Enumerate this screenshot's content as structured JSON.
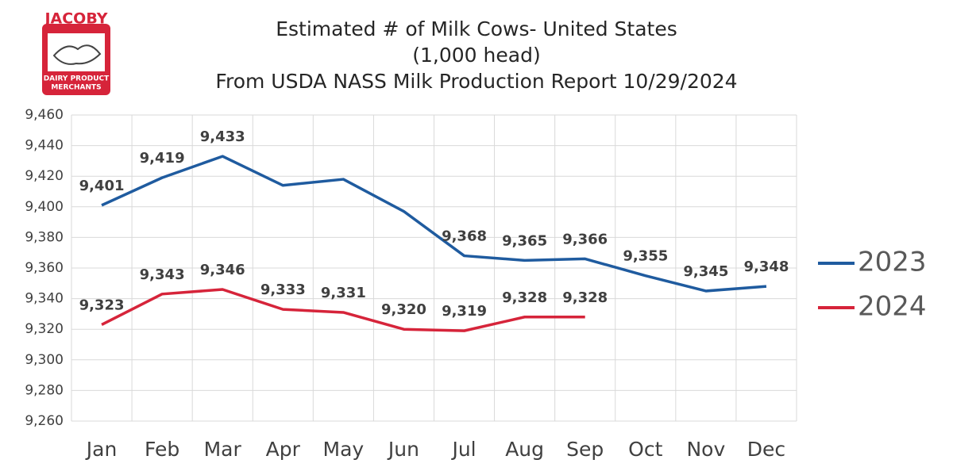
{
  "logo": {
    "name": "JACOBY",
    "line1": "DAIRY PRODUCT",
    "line2": "MERCHANTS"
  },
  "chart_data": {
    "type": "line",
    "title": "Estimated # of Milk Cows- United States",
    "subtitle": [
      "(1,000 head)",
      "From USDA NASS Milk Production Report 10/29/2024"
    ],
    "categories": [
      "Jan",
      "Feb",
      "Mar",
      "Apr",
      "May",
      "Jun",
      "Jul",
      "Aug",
      "Sep",
      "Oct",
      "Nov",
      "Dec"
    ],
    "series": [
      {
        "name": "2023",
        "color": "#1f5b9f",
        "values": [
          9401,
          9419,
          9433,
          9414,
          9418,
          9397,
          9368,
          9365,
          9366,
          9355,
          9345,
          9348
        ],
        "value_labels": [
          "9,401",
          "9,419",
          "9,433",
          null,
          null,
          null,
          "9,368",
          "9,365",
          "9,366",
          "9,355",
          "9,345",
          "9,348"
        ]
      },
      {
        "name": "2024",
        "color": "#d6243a",
        "values": [
          9323,
          9343,
          9346,
          9333,
          9331,
          9320,
          9319,
          9328,
          9328,
          null,
          null,
          null
        ],
        "value_labels": [
          "9,323",
          "9,343",
          "9,346",
          "9,333",
          "9,331",
          "9,320",
          "9,319",
          "9,328",
          "9,328",
          null,
          null,
          null
        ]
      }
    ],
    "ylim": [
      9260,
      9460
    ],
    "yticks": [
      {
        "value": 9260,
        "label": "9,260"
      },
      {
        "value": 9280,
        "label": "9,280"
      },
      {
        "value": 9300,
        "label": "9,300"
      },
      {
        "value": 9320,
        "label": "9,320"
      },
      {
        "value": 9340,
        "label": "9,340"
      },
      {
        "value": 9360,
        "label": "9,360"
      },
      {
        "value": 9380,
        "label": "9,380"
      },
      {
        "value": 9400,
        "label": "9,400"
      },
      {
        "value": 9420,
        "label": "9,420"
      },
      {
        "value": 9440,
        "label": "9,440"
      },
      {
        "value": 9460,
        "label": "9,460"
      }
    ],
    "grid": true,
    "legend": "right"
  }
}
